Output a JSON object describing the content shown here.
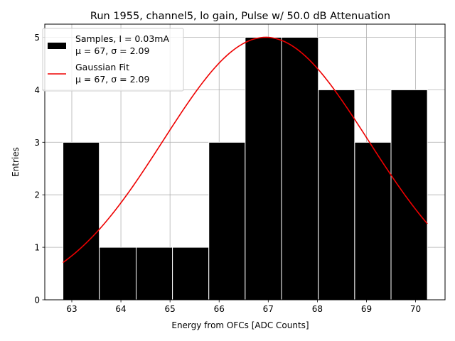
{
  "chart_data": {
    "type": "bar",
    "title": "Run 1955, channel5, lo gain, Pulse w/ 50.0 dB Attenuation",
    "xlabel": "Energy from OFCs [ADC Counts]",
    "ylabel": "Entries",
    "xlim": [
      62.45,
      70.6
    ],
    "ylim": [
      0,
      5.25
    ],
    "xticks": [
      63,
      64,
      65,
      66,
      67,
      68,
      69,
      70
    ],
    "yticks": [
      0,
      1,
      2,
      3,
      4,
      5
    ],
    "grid": true,
    "legend_position": "top-left",
    "histogram": {
      "name": "Samples, I = 0.03mA",
      "stats": "μ = 67, σ = 2.09",
      "color": "#000000",
      "edge_color": "#ffffff",
      "bin_edges": [
        62.82,
        63.56,
        64.31,
        65.05,
        65.79,
        66.53,
        67.27,
        68.02,
        68.76,
        69.5,
        70.24
      ],
      "counts": [
        3,
        1,
        1,
        1,
        3,
        5,
        5,
        4,
        3,
        4
      ]
    },
    "fit": {
      "name": "Gaussian Fit",
      "stats": "μ = 67, σ = 2.09",
      "color": "#ee0000",
      "amplitude": 5.0,
      "mu": 66.95,
      "sigma": 2.09,
      "x_range": [
        62.82,
        70.24
      ]
    }
  }
}
